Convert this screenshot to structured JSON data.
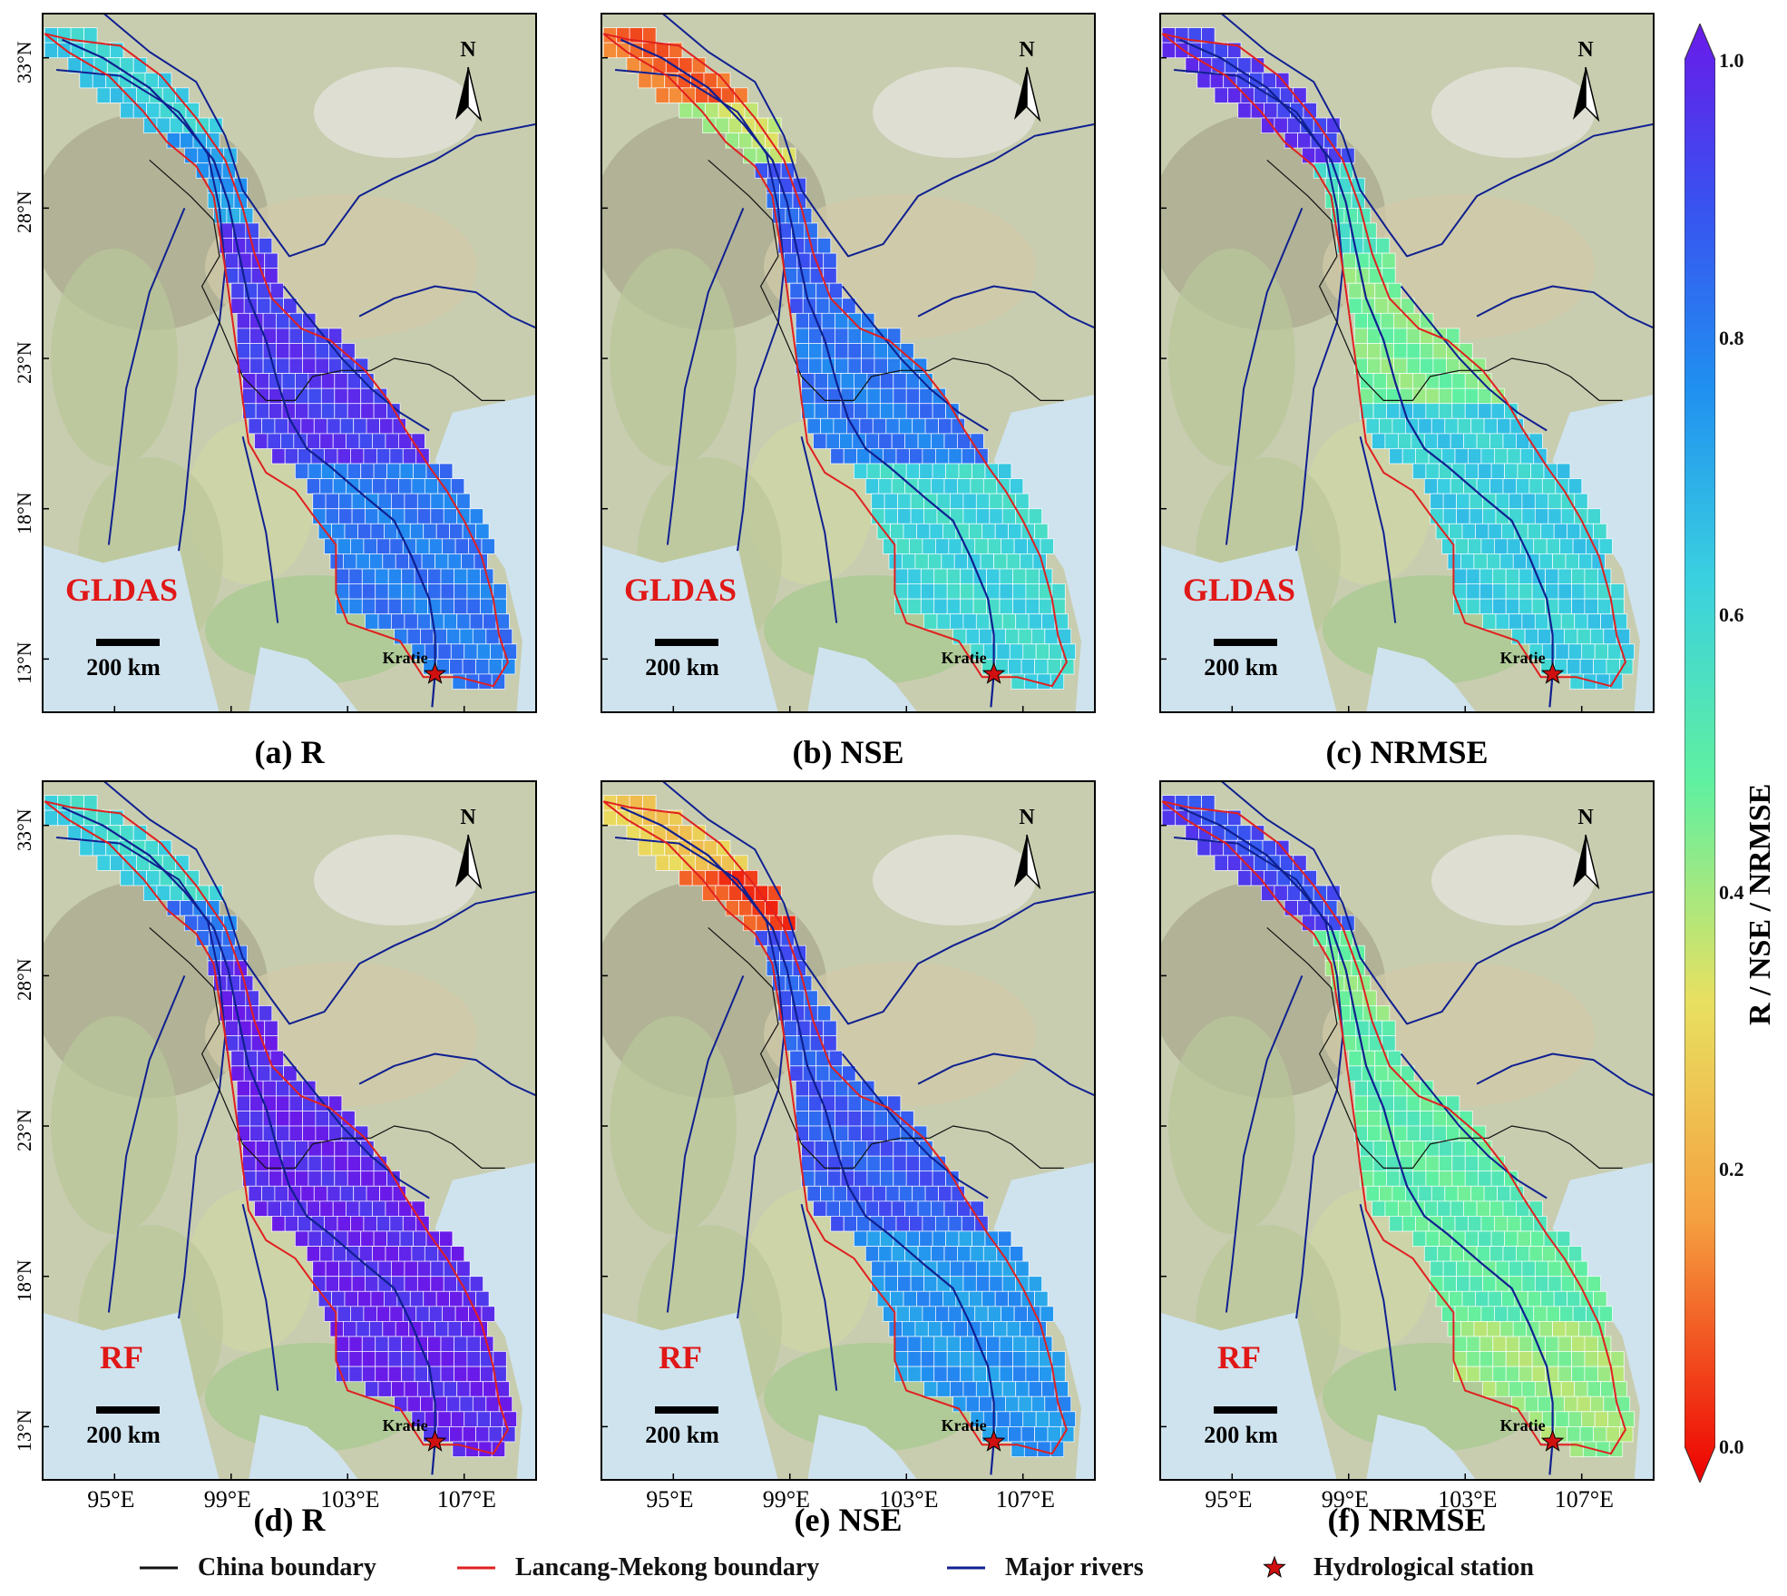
{
  "panels": [
    {
      "id": "a",
      "caption": "(a) R",
      "dataset": "GLDAS",
      "metric": "R"
    },
    {
      "id": "b",
      "caption": "(b) NSE",
      "dataset": "GLDAS",
      "metric": "NSE"
    },
    {
      "id": "c",
      "caption": "(c) NRMSE",
      "dataset": "GLDAS",
      "metric": "NRMSE"
    },
    {
      "id": "d",
      "caption": "(d) R",
      "dataset": "RF",
      "metric": "R"
    },
    {
      "id": "e",
      "caption": "(e) NSE",
      "dataset": "RF",
      "metric": "NSE"
    },
    {
      "id": "f",
      "caption": "(f) NRMSE",
      "dataset": "RF",
      "metric": "NRMSE"
    }
  ],
  "lat_ticks": [
    "33°N",
    "28°N",
    "23°N",
    "18°N",
    "13°N"
  ],
  "lon_ticks": [
    "95°E",
    "99°E",
    "103°E",
    "107°E"
  ],
  "north_arrow_label": "N",
  "scale_bar_label": "200 km",
  "station_label": "Kratie",
  "colorbar": {
    "title": "R / NSE / NRMSE",
    "ticks": [
      "1.0",
      "0.8",
      "0.6",
      "0.4",
      "0.2",
      "0.0"
    ],
    "range": [
      0.0,
      1.0
    ],
    "colors": [
      "#ee0000",
      "#f5a040",
      "#e8e060",
      "#60f0a0",
      "#3ad0e0",
      "#2090f0",
      "#3a50f0",
      "#6a1ae8"
    ]
  },
  "legend": [
    {
      "label": "China boundary",
      "type": "line",
      "color": "#111111"
    },
    {
      "label": "Lancang-Mekong boundary",
      "type": "line",
      "color": "#e02020"
    },
    {
      "label": "Major rivers",
      "type": "line",
      "color": "#102090"
    },
    {
      "label": "Hydrological station",
      "type": "star",
      "color": "#d01010"
    }
  ],
  "colors": {
    "boundary": "#e02020",
    "river": "#102090",
    "china_boundary": "#111111",
    "station": "#d01010",
    "dataset_label": "#e01818",
    "sea": "#cfe3ee",
    "land": "#c8cdb0"
  }
}
